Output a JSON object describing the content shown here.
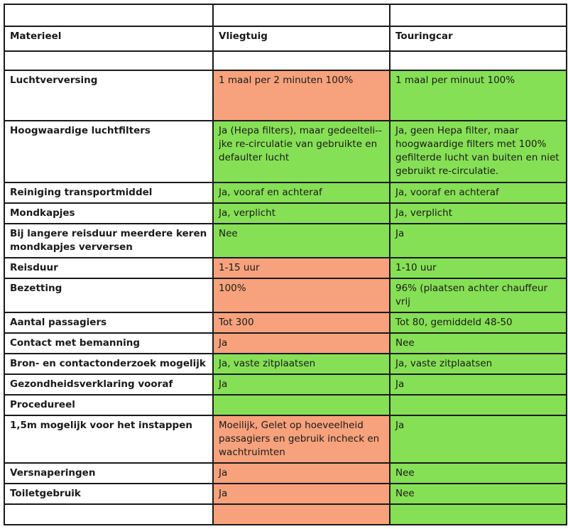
{
  "table": {
    "header": {
      "label": "Materieel",
      "col1": "Vliegtuig",
      "col2": "Touringcar"
    },
    "colors": {
      "green": "#86e056",
      "orange": "#f7a27c",
      "white": "#ffffff"
    },
    "rows": [
      {
        "label": "Luchtverversing",
        "a": "1 maal per 2 minuten 100%",
        "b": "1 maal per minuut 100%",
        "a_color": "orange",
        "b_color": "green"
      },
      {
        "label": "Hoogwaardige luchtfilters",
        "a": "Ja (Hepa filters), maar gedeelteli-­jke re-circulatie van gebruikte en defaulter lucht",
        "b": "Ja, geen Hepa filter, maar hoogwaardige filters met 100% gefilterde lucht van buiten en niet gebruikt re-circulatie.",
        "a_color": "green",
        "b_color": "green"
      },
      {
        "label": "Reiniging transportmiddel",
        "a": "Ja, vooraf en achteraf",
        "b": "Ja, vooraf en achteraf",
        "a_color": "green",
        "b_color": "green"
      },
      {
        "label": "Mondkapjes",
        "a": "Ja, verplicht",
        "b": "Ja, verplicht",
        "a_color": "green",
        "b_color": "green"
      },
      {
        "label": "Bij langere reisduur meerdere keren mondkapjes verversen",
        "a": "Nee",
        "b": "Ja",
        "a_color": "green",
        "b_color": "green"
      },
      {
        "label": "Reisduur",
        "a": "1-15 uur",
        "b": "1-10 uur",
        "a_color": "orange",
        "b_color": "green"
      },
      {
        "label": "Bezetting",
        "a": "100%",
        "b": "96% (plaatsen achter chauffeur vrij",
        "a_color": "orange",
        "b_color": "green"
      },
      {
        "label": "Aantal passagiers",
        "a": "Tot 300",
        "b": "Tot 80, gemiddeld 48-50",
        "a_color": "orange",
        "b_color": "green"
      },
      {
        "label": "Contact met bemanning",
        "a": "Ja",
        "b": "Nee",
        "a_color": "orange",
        "b_color": "green"
      },
      {
        "label": "Bron- en contactonderzoek mogelijk",
        "a": "Ja, vaste zitplaatsen",
        "b": "Ja, vaste zitplaatsen",
        "a_color": "green",
        "b_color": "green"
      },
      {
        "label": "Gezondheidsverklaring vooraf",
        "a": "Ja",
        "b": "Ja",
        "a_color": "green",
        "b_color": "green"
      },
      {
        "label": "Procedureel",
        "a": "",
        "b": "",
        "a_color": "green",
        "b_color": "green"
      },
      {
        "label": "1,5m mogelijk voor het instappen",
        "a": "Moeilijk, Gelet op hoeveelheid passagiers en gebruik incheck en wachtruimten",
        "b": "Ja",
        "a_color": "orange",
        "b_color": "green"
      },
      {
        "label": "Versnaperingen",
        "a": "Ja",
        "b": "Nee",
        "a_color": "orange",
        "b_color": "green"
      },
      {
        "label": "Toiletgebruik",
        "a": "Ja",
        "b": "Nee",
        "a_color": "orange",
        "b_color": "green"
      },
      {
        "label": "",
        "a": "",
        "b": "",
        "a_color": "orange",
        "b_color": "green"
      }
    ]
  }
}
